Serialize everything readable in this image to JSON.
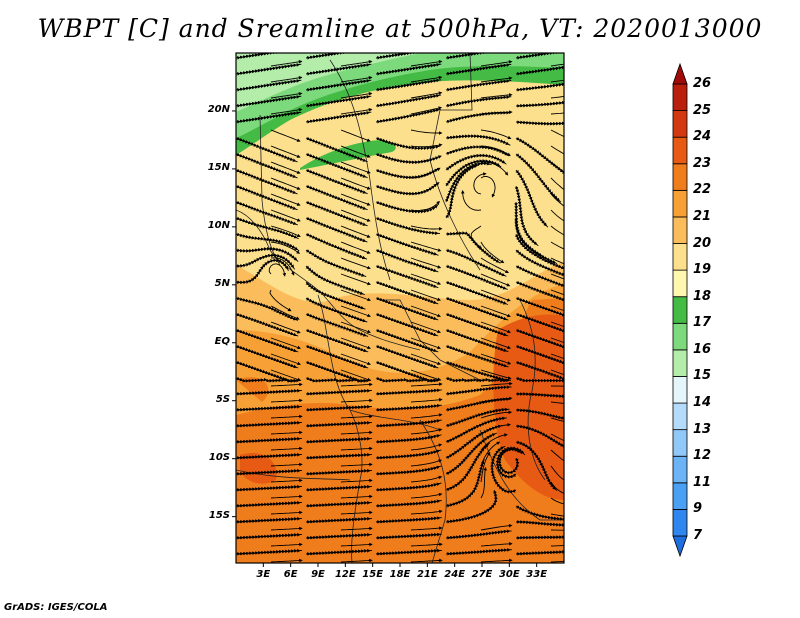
{
  "title": "WBPT [C] and Sreamline at 500hPa, VT: 2020013000",
  "footer": "GrADS: IGES/COLA",
  "map": {
    "lon_range": [
      0,
      36
    ],
    "lat_range": [
      -19,
      25
    ],
    "lat_ticks": [
      {
        "value": 20,
        "label": "20N"
      },
      {
        "value": 15,
        "label": "15N"
      },
      {
        "value": 10,
        "label": "10N"
      },
      {
        "value": 5,
        "label": "5N"
      },
      {
        "value": 0,
        "label": "EQ"
      },
      {
        "value": -5,
        "label": "5S"
      },
      {
        "value": -10,
        "label": "10S"
      },
      {
        "value": -15,
        "label": "15S"
      }
    ],
    "lon_ticks": [
      {
        "value": 3,
        "label": "3E"
      },
      {
        "value": 6,
        "label": "6E"
      },
      {
        "value": 9,
        "label": "9E"
      },
      {
        "value": 12,
        "label": "12E"
      },
      {
        "value": 15,
        "label": "15E"
      },
      {
        "value": 18,
        "label": "18E"
      },
      {
        "value": 21,
        "label": "21E"
      },
      {
        "value": 24,
        "label": "24E"
      },
      {
        "value": 27,
        "label": "27E"
      },
      {
        "value": 30,
        "label": "30E"
      },
      {
        "value": 33,
        "label": "33E"
      }
    ]
  },
  "colorbar": {
    "labels": [
      "7",
      "9",
      "11",
      "12",
      "13",
      "14",
      "15",
      "16",
      "17",
      "18",
      "19",
      "20",
      "21",
      "22",
      "23",
      "24",
      "25",
      "26"
    ],
    "colors": [
      "#1e6ee0",
      "#2e86ee",
      "#4aa0f2",
      "#6cb4f6",
      "#90c8f8",
      "#b4dcfa",
      "#e4f6fa",
      "#b4ecaa",
      "#7cd97c",
      "#44bb44",
      "#fff6b0",
      "#fce08e",
      "#fbbd5c",
      "#f7a035",
      "#f07d1c",
      "#e65a14",
      "#d43810",
      "#ba1e0c",
      "#a00a08"
    ]
  }
}
